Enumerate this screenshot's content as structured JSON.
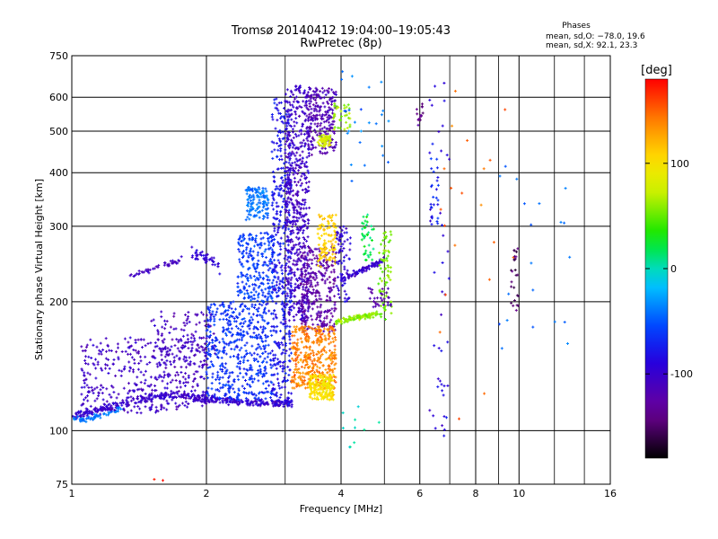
{
  "chart_data": {
    "type": "scatter",
    "title_line1": "Tromsø 20140412 19:04:00–19:05:43",
    "title_line2": "RwPretec (8p)",
    "xlabel": "Frequency [MHz]",
    "ylabel": "Stationary phase Virtual Height [km]",
    "x_scale": "log",
    "y_scale": "log",
    "xlim": [
      1,
      16
    ],
    "ylim": [
      75,
      750
    ],
    "x_ticks": [
      1,
      2,
      4,
      6,
      8,
      10,
      16
    ],
    "x_tick_labels": [
      "1",
      "2",
      "4",
      "6",
      "8",
      "10",
      "16"
    ],
    "x_minor_ticks": [
      3,
      5,
      7,
      9,
      12,
      14
    ],
    "y_ticks": [
      75,
      100,
      200,
      300,
      400,
      500,
      600,
      750
    ],
    "y_tick_labels": [
      "75",
      "100",
      "200",
      "300",
      "400",
      "500",
      "600",
      "750"
    ],
    "grid": true,
    "stats": {
      "heading": "Phases",
      "line_o": "mean, sd,O: −78.0, 19.6",
      "line_x": "mean, sd,X:  92.1, 23.3"
    },
    "colorbar": {
      "label": "[deg]",
      "range": [
        -180,
        180
      ],
      "ticks": [
        100,
        0,
        -100
      ],
      "tick_labels": [
        "100",
        "0",
        "-100"
      ],
      "colormap": "rainbow"
    },
    "traces": [
      {
        "type": "curve",
        "freq": [
          1.0,
          1.1,
          1.25,
          1.45,
          1.65,
          1.85,
          2.05,
          2.3,
          2.6,
          2.9,
          3.1
        ],
        "height": [
          108,
          110,
          114,
          119,
          121,
          120,
          118,
          117,
          116,
          116,
          116
        ],
        "phase": -100,
        "spread": 0.03,
        "count": 400
      },
      {
        "type": "curve",
        "freq": [
          1.0,
          1.05,
          1.1,
          1.2,
          1.3
        ],
        "height": [
          107,
          106,
          107,
          110,
          112
        ],
        "phase": -40,
        "spread": 0.02,
        "count": 60
      },
      {
        "type": "region",
        "freq": [
          1.05,
          2.0
        ],
        "height": [
          110,
          165
        ],
        "phase": -105,
        "count": 420
      },
      {
        "type": "region",
        "freq": [
          1.5,
          2.1
        ],
        "height": [
          140,
          190
        ],
        "phase": -110,
        "count": 120
      },
      {
        "type": "curve",
        "freq": [
          1.35,
          1.45,
          1.55,
          1.65,
          1.75
        ],
        "height": [
          228,
          235,
          240,
          245,
          250
        ],
        "phase": -105,
        "spread": 0.025,
        "count": 45
      },
      {
        "type": "curve",
        "freq": [
          1.85,
          1.95,
          2.05,
          2.15
        ],
        "height": [
          258,
          256,
          250,
          240
        ],
        "phase": -95,
        "spread": 0.04,
        "count": 45
      },
      {
        "type": "region",
        "freq": [
          2.0,
          2.8
        ],
        "height": [
          118,
          200
        ],
        "phase": -65,
        "count": 500
      },
      {
        "type": "region",
        "freq": [
          2.35,
          2.85
        ],
        "height": [
          200,
          290
        ],
        "phase": -60,
        "count": 250
      },
      {
        "type": "region",
        "freq": [
          2.45,
          2.75
        ],
        "height": [
          310,
          370
        ],
        "phase": -40,
        "count": 130
      },
      {
        "type": "region",
        "freq": [
          2.8,
          3.1
        ],
        "height": [
          115,
          600
        ],
        "phase": -80,
        "count": 450
      },
      {
        "type": "region",
        "freq": [
          3.0,
          3.4
        ],
        "height": [
          180,
          640
        ],
        "phase": -105,
        "count": 560
      },
      {
        "type": "region",
        "freq": [
          3.25,
          3.9
        ],
        "height": [
          170,
          270
        ],
        "phase": -125,
        "count": 300
      },
      {
        "type": "region",
        "freq": [
          3.1,
          3.9
        ],
        "height": [
          125,
          175
        ],
        "phase": 140,
        "count": 380
      },
      {
        "type": "region",
        "freq": [
          3.4,
          3.85
        ],
        "height": [
          118,
          135
        ],
        "phase": 100,
        "count": 200
      },
      {
        "type": "region",
        "freq": [
          3.55,
          3.9
        ],
        "height": [
          240,
          320
        ],
        "phase": 110,
        "count": 110
      },
      {
        "type": "region",
        "freq": [
          3.35,
          3.9
        ],
        "height": [
          440,
          630
        ],
        "phase": -115,
        "count": 220
      },
      {
        "type": "region",
        "freq": [
          3.55,
          3.8
        ],
        "height": [
          460,
          490
        ],
        "phase": 80,
        "count": 50
      },
      {
        "type": "region",
        "freq": [
          3.8,
          4.2
        ],
        "height": [
          500,
          580
        ],
        "phase": 60,
        "count": 35
      },
      {
        "type": "curve",
        "freq": [
          3.9,
          4.1,
          4.3,
          4.55,
          4.8
        ],
        "height": [
          180,
          181,
          183,
          185,
          188
        ],
        "phase": 60,
        "spread": 0.02,
        "count": 110
      },
      {
        "type": "curve",
        "freq": [
          4.0,
          4.25,
          4.5,
          4.75,
          5.0
        ],
        "height": [
          225,
          232,
          238,
          244,
          250
        ],
        "phase": -100,
        "spread": 0.02,
        "count": 90
      },
      {
        "type": "region",
        "freq": [
          3.9,
          4.2
        ],
        "height": [
          200,
          300
        ],
        "phase": -95,
        "count": 70
      },
      {
        "type": "region",
        "freq": [
          4.85,
          5.2
        ],
        "height": [
          180,
          295
        ],
        "phase": 55,
        "count": 75
      },
      {
        "type": "region",
        "freq": [
          4.45,
          4.75
        ],
        "height": [
          250,
          320
        ],
        "phase": 20,
        "count": 40
      },
      {
        "type": "region",
        "freq": [
          4.6,
          5.2
        ],
        "height": [
          190,
          215
        ],
        "phase": -120,
        "count": 30
      },
      {
        "type": "region",
        "freq": [
          4.0,
          5.2
        ],
        "height": [
          380,
          720
        ],
        "phase": -40,
        "count": 25
      },
      {
        "type": "region",
        "freq": [
          4.0,
          5.0
        ],
        "height": [
          85,
          120
        ],
        "phase": 0,
        "count": 10
      },
      {
        "type": "region",
        "freq": [
          5.9,
          6.1
        ],
        "height": [
          510,
          580
        ],
        "phase": -140,
        "count": 15
      },
      {
        "type": "region",
        "freq": [
          6.35,
          6.6
        ],
        "height": [
          300,
          440
        ],
        "phase": -70,
        "count": 25
      },
      {
        "type": "region",
        "freq": [
          6.3,
          7.0
        ],
        "height": [
          90,
          650
        ],
        "phase": -90,
        "count": 45
      },
      {
        "type": "region",
        "freq": [
          6.6,
          10.0
        ],
        "height": [
          100,
          650
        ],
        "phase": 150,
        "count": 20
      },
      {
        "type": "region",
        "freq": [
          9.6,
          10.0
        ],
        "height": [
          190,
          280
        ],
        "phase": -150,
        "count": 25
      },
      {
        "type": "region",
        "freq": [
          9.0,
          13.0
        ],
        "height": [
          150,
          620
        ],
        "phase": -40,
        "count": 20
      },
      {
        "type": "region",
        "freq": [
          1.5,
          1.6
        ],
        "height": [
          76,
          78
        ],
        "phase": 170,
        "count": 2
      }
    ]
  }
}
